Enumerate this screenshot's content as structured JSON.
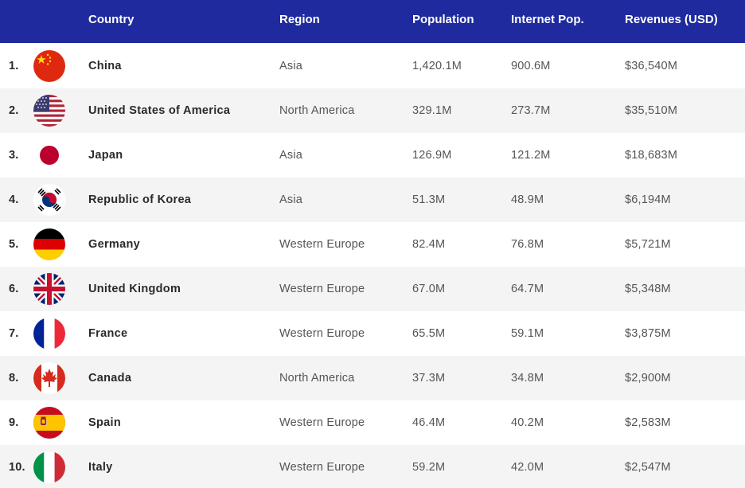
{
  "header": {
    "country": "Country",
    "region": "Region",
    "population": "Population",
    "internet_population": "Internet Pop.",
    "revenues": "Revenues (USD)"
  },
  "rows": [
    {
      "rank": "1.",
      "flag": "china-flag-icon",
      "country": "China",
      "region": "Asia",
      "population": "1,420.1M",
      "internet_population": "900.6M",
      "revenues": "$36,540M"
    },
    {
      "rank": "2.",
      "flag": "usa-flag-icon",
      "country": "United States of America",
      "region": "North America",
      "population": "329.1M",
      "internet_population": "273.7M",
      "revenues": "$35,510M"
    },
    {
      "rank": "3.",
      "flag": "japan-flag-icon",
      "country": "Japan",
      "region": "Asia",
      "population": "126.9M",
      "internet_population": "121.2M",
      "revenues": "$18,683M"
    },
    {
      "rank": "4.",
      "flag": "korea-flag-icon",
      "country": "Republic of Korea",
      "region": "Asia",
      "population": "51.3M",
      "internet_population": "48.9M",
      "revenues": "$6,194M"
    },
    {
      "rank": "5.",
      "flag": "germany-flag-icon",
      "country": "Germany",
      "region": "Western Europe",
      "population": "82.4M",
      "internet_population": "76.8M",
      "revenues": "$5,721M"
    },
    {
      "rank": "6.",
      "flag": "uk-flag-icon",
      "country": "United Kingdom",
      "region": "Western Europe",
      "population": "67.0M",
      "internet_population": "64.7M",
      "revenues": "$5,348M"
    },
    {
      "rank": "7.",
      "flag": "france-flag-icon",
      "country": "France",
      "region": "Western Europe",
      "population": "65.5M",
      "internet_population": "59.1M",
      "revenues": "$3,875M"
    },
    {
      "rank": "8.",
      "flag": "canada-flag-icon",
      "country": "Canada",
      "region": "North America",
      "population": "37.3M",
      "internet_population": "34.8M",
      "revenues": "$2,900M"
    },
    {
      "rank": "9.",
      "flag": "spain-flag-icon",
      "country": "Spain",
      "region": "Western Europe",
      "population": "46.4M",
      "internet_population": "40.2M",
      "revenues": "$2,583M"
    },
    {
      "rank": "10.",
      "flag": "italy-flag-icon",
      "country": "Italy",
      "region": "Western Europe",
      "population": "59.2M",
      "internet_population": "42.0M",
      "revenues": "$2,547M"
    }
  ],
  "colors": {
    "header_bg": "#1e2a9e",
    "header_text": "#ffffff",
    "row_alt_bg": "#f4f4f4"
  }
}
